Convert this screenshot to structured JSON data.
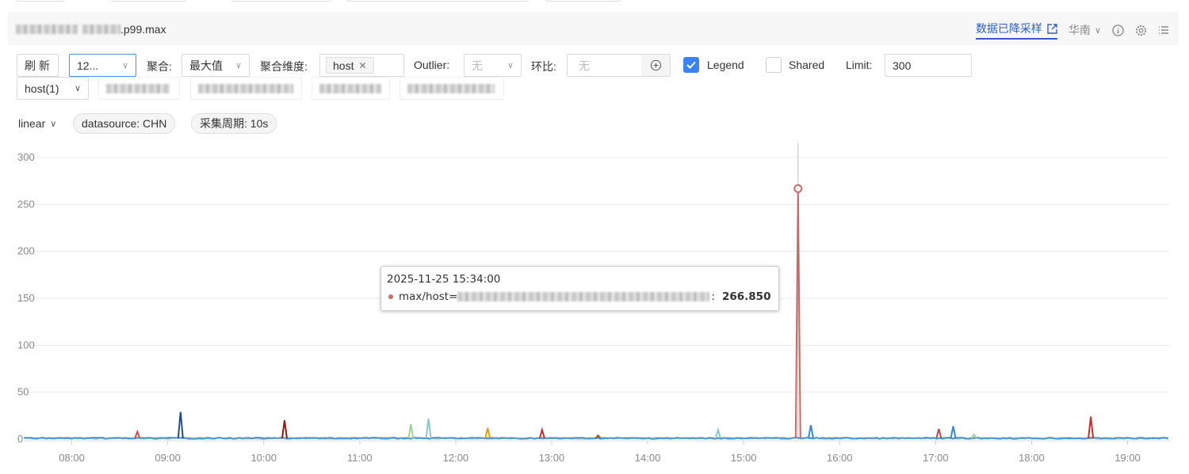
{
  "header": {
    "title_suffix": ".p99.max",
    "downsample_link": "数据已降采样",
    "region": "华南",
    "icons": [
      "external-link-icon",
      "chevron-down-icon",
      "info-icon",
      "gear-icon",
      "list-icon"
    ]
  },
  "controls": {
    "refresh": "刷 新",
    "time_select": "12...",
    "agg_label": "聚合:",
    "agg_value": "最大值",
    "dim_label": "聚合维度:",
    "dim_tag": "host",
    "outlier_label": "Outlier:",
    "outlier_value": "无",
    "compare_label": "环比:",
    "compare_placeholder": "无",
    "legend_label": "Legend",
    "legend_checked": true,
    "shared_label": "Shared",
    "shared_checked": false,
    "limit_label": "Limit:",
    "limit_value": "300",
    "host_filter": "host(1)",
    "scale": "linear",
    "datasource": "datasource: CHN",
    "period": "采集周期: 10s"
  },
  "colors": {
    "accent": "#2f5fc4",
    "checkbox": "#3b82f6",
    "baseline": "#4a9bd4",
    "highlight": "#c96a6a"
  },
  "tooltip": {
    "time": "2025-11-25 15:34:00",
    "series_prefix": "max/host=",
    "value": "266.850"
  },
  "chart_data": {
    "type": "line",
    "ylim": [
      0,
      300
    ],
    "yticks": [
      0,
      50,
      100,
      150,
      200,
      250,
      300
    ],
    "xlim": [
      "07:30",
      "19:26"
    ],
    "xticks": [
      "08:00",
      "09:00",
      "10:00",
      "11:00",
      "12:00",
      "13:00",
      "14:00",
      "15:00",
      "16:00",
      "17:00",
      "18:00",
      "19:00"
    ],
    "grid": true,
    "baseline_value": 1,
    "spikes": [
      {
        "t": "08:41",
        "v": 8,
        "color": "#c0504d"
      },
      {
        "t": "09:08",
        "v": 29,
        "color": "#1f4e8c"
      },
      {
        "t": "10:13",
        "v": 20,
        "color": "#8b1a1a"
      },
      {
        "t": "11:32",
        "v": 16,
        "color": "#9fd49a"
      },
      {
        "t": "11:43",
        "v": 22,
        "color": "#8ec5c9"
      },
      {
        "t": "12:20",
        "v": 12,
        "color": "#d4a020"
      },
      {
        "t": "12:54",
        "v": 10,
        "color": "#c0302f"
      },
      {
        "t": "13:29",
        "v": 4,
        "color": "#8a5a2a"
      },
      {
        "t": "14:44",
        "v": 10,
        "color": "#8ec5c9"
      },
      {
        "t": "15:34",
        "v": 266.85,
        "color": "#c96a6a"
      },
      {
        "t": "15:42",
        "v": 15,
        "color": "#3a87c8"
      },
      {
        "t": "17:02",
        "v": 11,
        "color": "#b54a4a"
      },
      {
        "t": "17:11",
        "v": 14,
        "color": "#3a87c8"
      },
      {
        "t": "17:24",
        "v": 5,
        "color": "#9fd49a"
      },
      {
        "t": "18:37",
        "v": 24,
        "color": "#c0302f"
      }
    ],
    "hover": {
      "t": "15:34",
      "v": 266.85
    }
  }
}
